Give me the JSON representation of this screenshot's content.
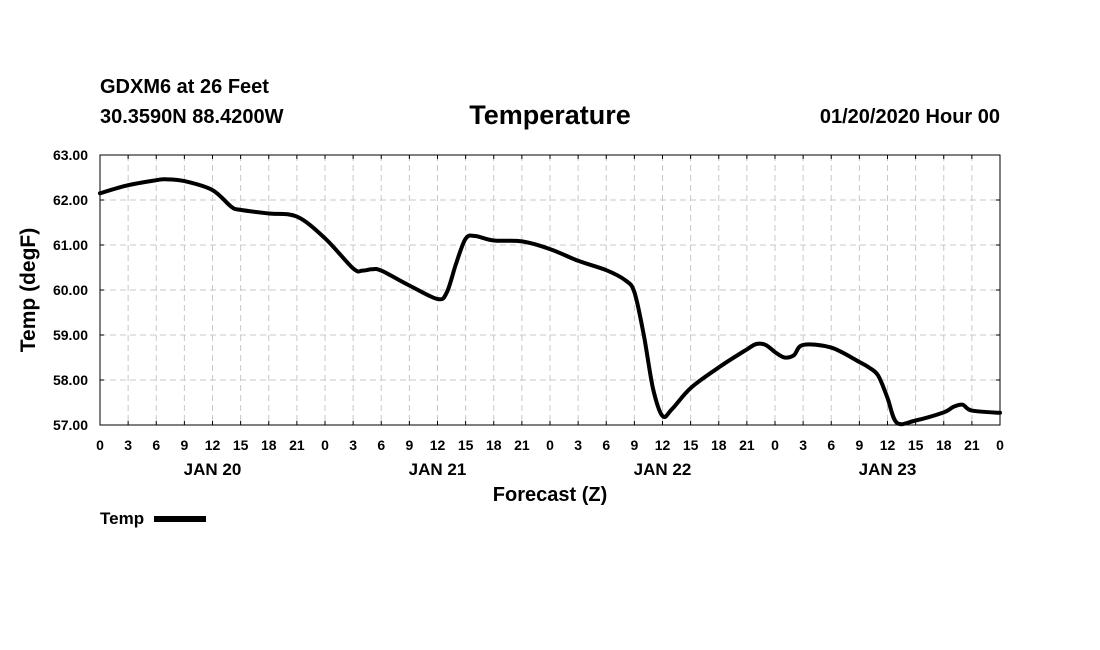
{
  "header": {
    "station": "GDXM6 at 26 Feet",
    "coords": "30.3590N 88.4200W",
    "run_time": "01/20/2020 Hour 00"
  },
  "chart_data": {
    "type": "line",
    "title": "Temperature",
    "xlabel": "Forecast (Z)",
    "ylabel": "Temp (degF)",
    "xlim": [
      0,
      96
    ],
    "ylim": [
      57.0,
      63.0
    ],
    "y_ticks": [
      "57.00",
      "58.00",
      "59.00",
      "60.00",
      "61.00",
      "62.00",
      "63.00"
    ],
    "x_tick_labels": [
      "0",
      "3",
      "6",
      "9",
      "12",
      "15",
      "18",
      "21",
      "0",
      "3",
      "6",
      "9",
      "12",
      "15",
      "18",
      "21",
      "0",
      "3",
      "6",
      "9",
      "12",
      "15",
      "18",
      "21",
      "0",
      "3",
      "6",
      "9",
      "12",
      "15",
      "18",
      "21",
      "0"
    ],
    "day_labels": [
      {
        "label": "JAN 20",
        "hour": 12
      },
      {
        "label": "JAN 21",
        "hour": 36
      },
      {
        "label": "JAN 22",
        "hour": 60
      },
      {
        "label": "JAN 23",
        "hour": 84
      }
    ],
    "grid": true,
    "series": [
      {
        "name": "Temp",
        "x": [
          0,
          3,
          6,
          7,
          9,
          12,
          14,
          15,
          18,
          21,
          24,
          27,
          28,
          29,
          30,
          33,
          36,
          37,
          38,
          39,
          40,
          42,
          45,
          48,
          51,
          54,
          56,
          57,
          58,
          59,
          60,
          61,
          63,
          66,
          69,
          70,
          71,
          72,
          73,
          74,
          75,
          78,
          81,
          82,
          83,
          84,
          85,
          87,
          90,
          91,
          92,
          93,
          96
        ],
        "values": [
          62.15,
          62.33,
          62.44,
          62.46,
          62.42,
          62.22,
          61.85,
          61.78,
          61.7,
          61.63,
          61.15,
          60.48,
          60.43,
          60.46,
          60.43,
          60.1,
          59.8,
          59.95,
          60.6,
          61.14,
          61.2,
          61.1,
          61.08,
          60.91,
          60.65,
          60.44,
          60.22,
          59.95,
          59.0,
          57.8,
          57.2,
          57.35,
          57.82,
          58.28,
          58.68,
          58.8,
          58.78,
          58.62,
          58.5,
          58.55,
          58.78,
          58.72,
          58.4,
          58.28,
          58.1,
          57.6,
          57.05,
          57.1,
          57.28,
          57.4,
          57.45,
          57.32,
          57.27
        ]
      }
    ]
  },
  "legend": {
    "label": "Temp"
  },
  "colors": {
    "line": "#000000",
    "grid": "#c8c8c8",
    "background": "#ffffff"
  }
}
